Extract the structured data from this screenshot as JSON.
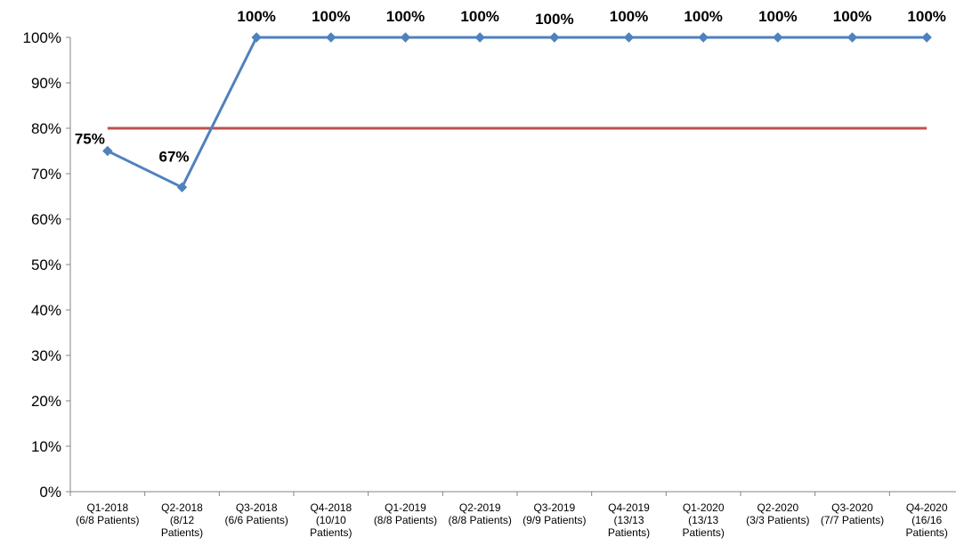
{
  "chart_data": {
    "type": "line",
    "title": "",
    "xlabel": "",
    "ylabel": "",
    "ylim": [
      0,
      100
    ],
    "y_ticks": [
      "0%",
      "10%",
      "20%",
      "30%",
      "40%",
      "50%",
      "60%",
      "70%",
      "80%",
      "90%",
      "100%"
    ],
    "grid": false,
    "legend": "none",
    "categories": [
      [
        "Q1-2018",
        "(6/8 Patients)"
      ],
      [
        "Q2-2018",
        "(8/12",
        "Patients)"
      ],
      [
        "Q3-2018",
        "(6/6 Patients)"
      ],
      [
        "Q4-2018",
        "(10/10",
        "Patients)"
      ],
      [
        "Q1-2019",
        "(8/8 Patients)"
      ],
      [
        "Q2-2019",
        "(8/8 Patients)"
      ],
      [
        "Q3-2019",
        "(9/9 Patients)"
      ],
      [
        "Q4-2019",
        "(13/13",
        "Patients)"
      ],
      [
        "Q1-2020",
        "(13/13",
        "Patients)"
      ],
      [
        "Q2-2020",
        "(3/3 Patients)"
      ],
      [
        "Q3-2020",
        "(7/7 Patients)"
      ],
      [
        "Q4-2020",
        "(16/16",
        "Patients)"
      ]
    ],
    "series": [
      {
        "values": [
          75,
          67,
          100,
          100,
          100,
          100,
          100,
          100,
          100,
          100,
          100,
          100
        ],
        "data_labels": [
          "75%",
          "67%",
          "100%",
          "100%",
          "100%",
          "100%",
          "100%",
          "100%",
          "100%",
          "100%",
          "100%",
          "100%"
        ],
        "color": "#4F81BD",
        "marker": "diamond"
      },
      {
        "values": [
          80,
          80,
          80,
          80,
          80,
          80,
          80,
          80,
          80,
          80,
          80,
          80
        ],
        "color": "#C0504D",
        "marker": "none"
      }
    ]
  }
}
